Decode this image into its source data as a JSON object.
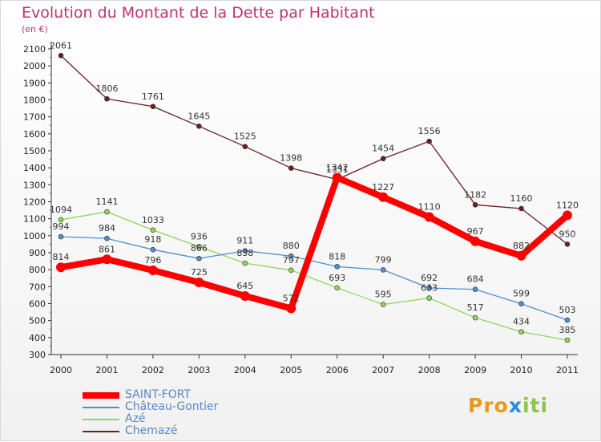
{
  "chart_data": {
    "type": "line",
    "title": "Evolution du Montant de la Dette par Habitant",
    "subtitle": "(en €)",
    "xlabel": "",
    "ylabel": "",
    "categories": [
      "2000",
      "2001",
      "2002",
      "2003",
      "2004",
      "2005",
      "2006",
      "2007",
      "2008",
      "2009",
      "2010",
      "2011"
    ],
    "ylim": [
      300,
      2100
    ],
    "yticks": [
      300,
      400,
      500,
      600,
      700,
      800,
      900,
      1000,
      1100,
      1200,
      1300,
      1400,
      1500,
      1600,
      1700,
      1800,
      1900,
      2000,
      2100
    ],
    "grid": false,
    "legend_position": "bottom-left",
    "series": [
      {
        "name": "SAINT-FORT",
        "color": "#ff0000",
        "values": [
          814,
          861,
          796,
          725,
          645,
          572,
          1342,
          1227,
          1110,
          967,
          882,
          1120
        ]
      },
      {
        "name": "Château-Gontier",
        "color": "#4f8fcf",
        "values": [
          994,
          984,
          918,
          866,
          911,
          880,
          818,
          799,
          692,
          684,
          599,
          503
        ]
      },
      {
        "name": "Azé",
        "color": "#8ed65b",
        "values": [
          1094,
          1141,
          1033,
          936,
          838,
          797,
          693,
          595,
          633,
          517,
          434,
          385
        ]
      },
      {
        "name": "Chemazé",
        "color": "#6b1f22",
        "values": [
          2061,
          1806,
          1761,
          1645,
          1525,
          1398,
          1331,
          1454,
          1556,
          1182,
          1160,
          950
        ]
      }
    ]
  },
  "logo": {
    "parts": [
      "Pro",
      "x",
      "iti"
    ]
  }
}
